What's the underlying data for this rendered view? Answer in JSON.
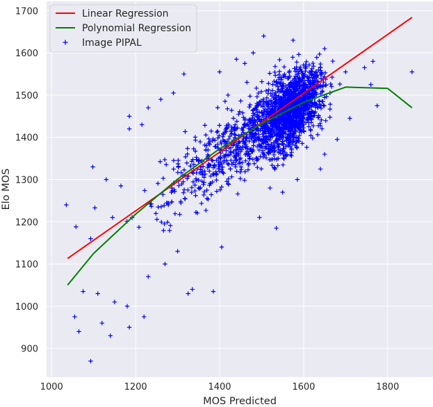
{
  "colors": {
    "plot_background": "#eaeaf2",
    "grid": "#ffffff",
    "linear": "#ff0000",
    "polynomial": "#008000",
    "points": "#0000ff"
  },
  "chart_data": {
    "type": "scatter",
    "title": "",
    "xlabel": "MOS Predicted",
    "ylabel": "Elo MOS",
    "xlim": [
      988,
      1908
    ],
    "ylim": [
      832,
      1722
    ],
    "xticks": [
      1000,
      1200,
      1400,
      1600,
      1800
    ],
    "yticks": [
      900,
      1000,
      1100,
      1200,
      1300,
      1400,
      1500,
      1600,
      1700
    ],
    "grid": true,
    "legend_position": "top-left",
    "legend": [
      "Linear Regression",
      "Polynomial Regression",
      "Image PIPAL"
    ],
    "series": [
      {
        "name": "Linear Regression",
        "kind": "line",
        "x": [
          1038,
          1858
        ],
        "y": [
          1113,
          1684
        ]
      },
      {
        "name": "Polynomial Regression",
        "kind": "line",
        "x": [
          1038,
          1100,
          1200,
          1300,
          1400,
          1500,
          1600,
          1700,
          1800,
          1858
        ],
        "y": [
          1050,
          1125,
          1218,
          1301,
          1373,
          1432,
          1483,
          1519,
          1516,
          1470
        ]
      },
      {
        "name": "Image PIPAL",
        "kind": "scatter",
        "marker": "+",
        "n_points": 2000,
        "points": [
          [
            1093,
            870
          ],
          [
            1140,
            930
          ],
          [
            1055,
            975
          ],
          [
            1065,
            940
          ],
          [
            1120,
            960
          ],
          [
            1150,
            1010
          ],
          [
            1185,
            950
          ],
          [
            1220,
            975
          ],
          [
            1075,
            1035
          ],
          [
            1110,
            1030
          ],
          [
            1180,
            1000
          ],
          [
            1035,
            1240
          ],
          [
            1058,
            1188
          ],
          [
            1093,
            1160
          ],
          [
            1103,
            1233
          ],
          [
            1098,
            1330
          ],
          [
            1130,
            1300
          ],
          [
            1145,
            1210
          ],
          [
            1165,
            1285
          ],
          [
            1185,
            1420
          ],
          [
            1185,
            1450
          ],
          [
            1215,
            1430
          ],
          [
            1230,
            1470
          ],
          [
            1260,
            1490
          ],
          [
            1290,
            1505
          ],
          [
            1315,
            1550
          ],
          [
            1495,
            1210
          ],
          [
            1535,
            1185
          ],
          [
            1505,
            1640
          ],
          [
            1575,
            1630
          ],
          [
            1650,
            1610
          ],
          [
            1700,
            1555
          ],
          [
            1745,
            1565
          ],
          [
            1765,
            1580
          ],
          [
            1858,
            1555
          ],
          [
            1270,
            1100
          ],
          [
            1300,
            1130
          ],
          [
            1335,
            1040
          ],
          [
            1385,
            1035
          ],
          [
            1405,
            1140
          ],
          [
            1325,
            1030
          ],
          [
            1230,
            1070
          ],
          [
            1640,
            1325
          ],
          [
            1650,
            1360
          ],
          [
            1585,
            1300
          ],
          [
            1680,
            1395
          ],
          [
            1710,
            1445
          ],
          [
            1760,
            1525
          ],
          [
            1775,
            1475
          ],
          [
            1440,
            1585
          ],
          [
            1460,
            1575
          ],
          [
            1480,
            1600
          ],
          [
            1420,
            1500
          ],
          [
            1400,
            1555
          ],
          [
            1520,
            1280
          ],
          [
            1550,
            1270
          ]
        ]
      }
    ]
  }
}
